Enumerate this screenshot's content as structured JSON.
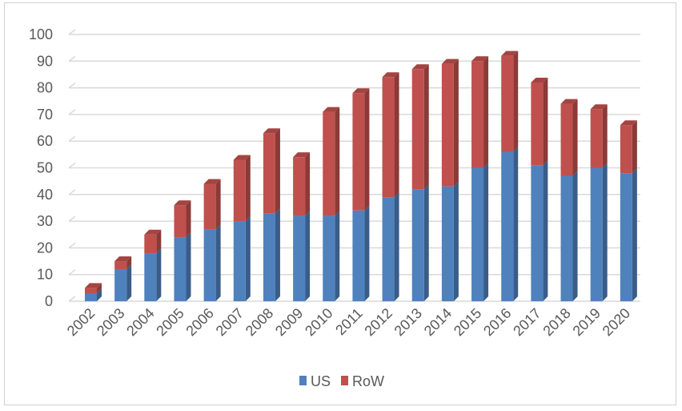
{
  "chart_data": {
    "type": "bar",
    "stacked": true,
    "style": "3d-column",
    "categories": [
      "2002",
      "2003",
      "2004",
      "2005",
      "2006",
      "2007",
      "2008",
      "2009",
      "2010",
      "2011",
      "2012",
      "2013",
      "2014",
      "2015",
      "2016",
      "2017",
      "2018",
      "2019",
      "2020"
    ],
    "series": [
      {
        "name": "US",
        "color": "#4f81bd",
        "values": [
          3,
          12,
          18,
          24,
          27,
          30,
          33,
          32,
          32,
          34,
          39,
          42,
          43,
          50,
          56,
          51,
          47,
          50,
          48
        ]
      },
      {
        "name": "RoW",
        "color": "#c0504d",
        "values": [
          2,
          3,
          7,
          12,
          17,
          23,
          30,
          22,
          39,
          44,
          45,
          45,
          46,
          40,
          36,
          31,
          27,
          22,
          18
        ]
      }
    ],
    "yticks": [
      "0",
      "10",
      "20",
      "30",
      "40",
      "50",
      "60",
      "70",
      "80",
      "90",
      "100"
    ],
    "ylim": [
      0,
      100
    ],
    "grid": true,
    "legend": "bottom-center"
  }
}
